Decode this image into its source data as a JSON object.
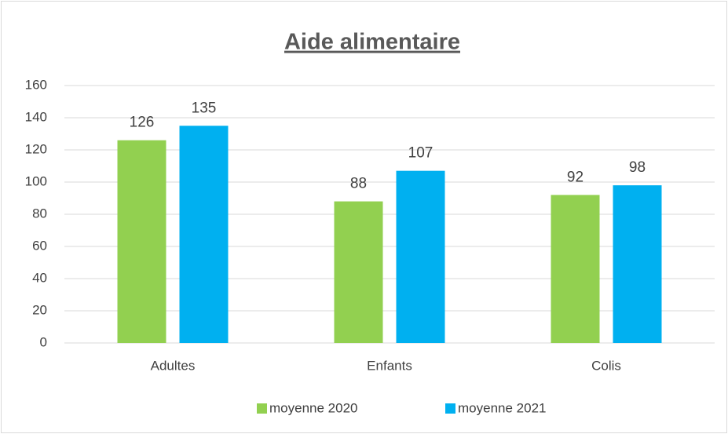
{
  "chart_data": {
    "type": "bar",
    "title": "Aide alimentaire",
    "categories": [
      "Adultes",
      "Enfants",
      "Colis"
    ],
    "series": [
      {
        "name": "moyenne 2020",
        "color": "#92d050",
        "values": [
          126,
          88,
          92
        ]
      },
      {
        "name": "moyenne 2021",
        "color": "#00b0f0",
        "values": [
          135,
          107,
          98
        ]
      }
    ],
    "ylim": [
      0,
      160
    ],
    "yticks": [
      0,
      20,
      40,
      60,
      80,
      100,
      120,
      140,
      160
    ],
    "grid": true,
    "legend": "bottom"
  }
}
